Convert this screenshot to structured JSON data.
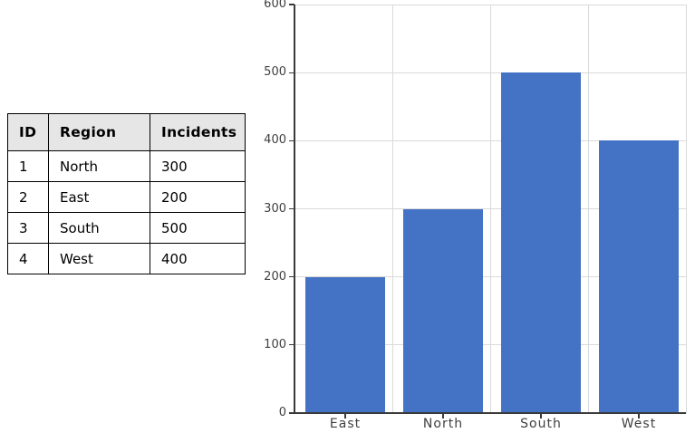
{
  "table": {
    "headers": [
      "ID",
      "Region",
      "Incidents"
    ],
    "rows": [
      [
        "1",
        "North",
        "300"
      ],
      [
        "2",
        "East",
        "200"
      ],
      [
        "3",
        "South",
        "500"
      ],
      [
        "4",
        "West",
        "400"
      ]
    ],
    "header_bg": "#E6E6E6",
    "border_color": "#000000"
  },
  "chart_data": {
    "type": "bar",
    "categories": [
      "East",
      "North",
      "South",
      "West"
    ],
    "values": [
      200,
      300,
      500,
      400
    ],
    "title": "",
    "xlabel": "",
    "ylabel": "",
    "ylim": [
      0,
      600
    ],
    "yticks": [
      0,
      100,
      200,
      300,
      400,
      500,
      600
    ],
    "grid": true,
    "legend": false,
    "bar_color": "#4472C4",
    "gridline_color": "#D9D9D9",
    "axis_color": "#3a3a3a",
    "label_color": "#404040"
  }
}
